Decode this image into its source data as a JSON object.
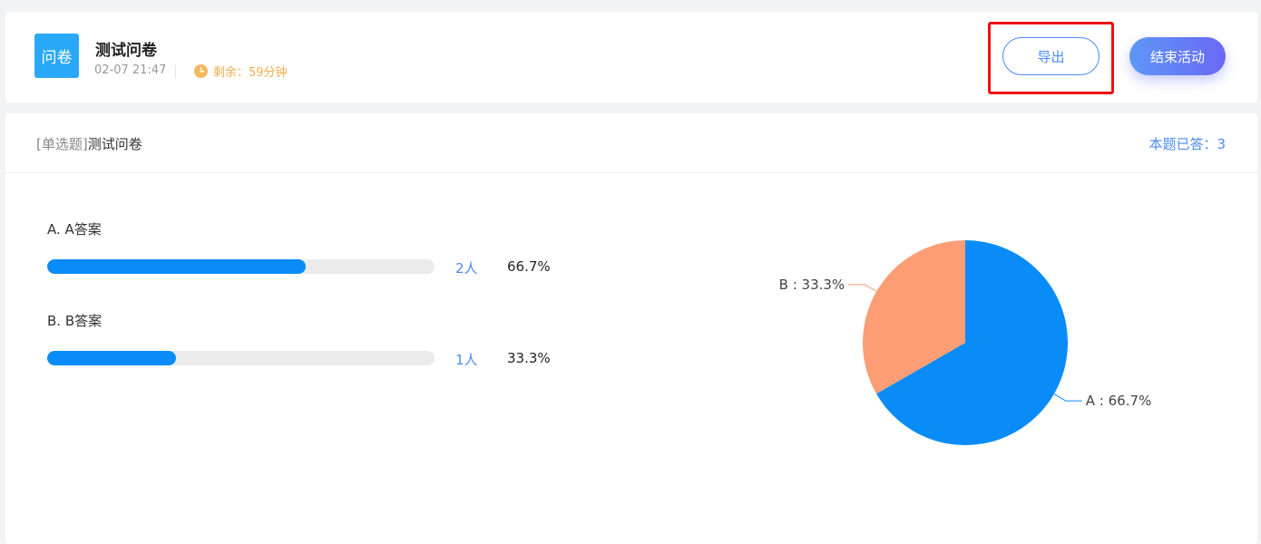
{
  "header": {
    "icon_text": "问卷",
    "title": "测试问卷",
    "date": "02-07 21:47",
    "remaining": "剩余：59分钟",
    "export_label": "导出",
    "end_label": "结束活动"
  },
  "question": {
    "type_label": "[单选题]",
    "title": "测试问卷",
    "answered": "本题已答：3"
  },
  "options": [
    {
      "label": "A. A答案",
      "count": "2人",
      "percent": "66.7%",
      "fraction": 0.667
    },
    {
      "label": "B. B答案",
      "count": "1人",
      "percent": "33.3%",
      "fraction": 0.333
    }
  ],
  "colors": {
    "primary": "#0a8cf8",
    "secondary": "#fd9d75",
    "accent": "#4b8bf5",
    "warning": "#f0ad4e"
  },
  "chart_data": {
    "type": "pie",
    "slices": [
      {
        "name": "A",
        "value": 66.7,
        "label": "A : 66.7%",
        "color": "#0a8cf8"
      },
      {
        "name": "B",
        "value": 33.3,
        "label": "B : 33.3%",
        "color": "#fd9d75"
      }
    ]
  }
}
